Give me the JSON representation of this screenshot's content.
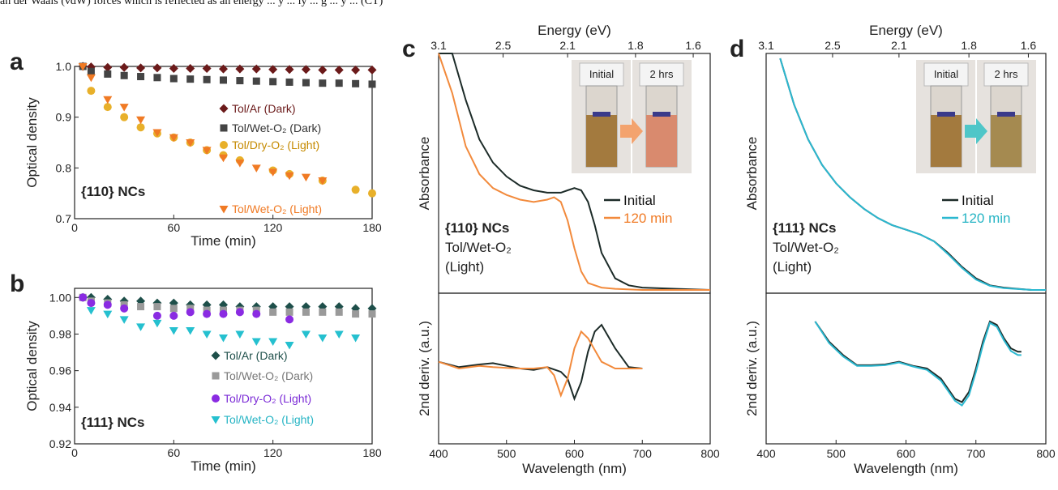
{
  "top_text": "an der Waals (vdW) forces which is reflected as an energy ... y ... ly ... g ... y ... (CT)",
  "colors": {
    "dark_red": "#6b1a1a",
    "dark_gray": "#444444",
    "gold": "#e8b02a",
    "orange": "#f07a24",
    "dark_teal": "#1e4f4a",
    "gray": "#9a9a9a",
    "purple": "#8a2be2",
    "cyan": "#25c0cf",
    "black_line": "#1c2b28",
    "orange_line": "#f28a3c",
    "cyan_line": "#2bb8d0"
  },
  "chart_data": [
    {
      "panel": "a",
      "type": "scatter",
      "xlabel": "Time (min)",
      "ylabel": "Optical density",
      "xlim": [
        0,
        180
      ],
      "ylim": [
        0.7,
        1.0
      ],
      "xticks": [
        "0",
        "60",
        "120",
        "180"
      ],
      "yticks": [
        "0.7",
        "0.8",
        "0.9",
        "1.0"
      ],
      "annotation": "{110} NCs",
      "series": [
        {
          "name": "Tol/Ar (Dark)",
          "marker": "diamond",
          "color": "#6b1a1a",
          "x": [
            5,
            10,
            20,
            30,
            40,
            50,
            60,
            70,
            80,
            90,
            100,
            110,
            120,
            130,
            140,
            150,
            160,
            170,
            180
          ],
          "y": [
            1.0,
            0.999,
            0.998,
            0.998,
            0.997,
            0.997,
            0.996,
            0.996,
            0.996,
            0.995,
            0.995,
            0.995,
            0.994,
            0.994,
            0.994,
            0.993,
            0.993,
            0.993,
            0.993
          ]
        },
        {
          "name": "Tol/Wet-O₂ (Dark)",
          "marker": "square",
          "color": "#444444",
          "x": [
            5,
            10,
            20,
            30,
            40,
            50,
            60,
            70,
            80,
            90,
            100,
            110,
            120,
            130,
            140,
            150,
            160,
            170,
            180
          ],
          "y": [
            1.0,
            0.99,
            0.985,
            0.982,
            0.98,
            0.978,
            0.976,
            0.975,
            0.974,
            0.973,
            0.972,
            0.971,
            0.97,
            0.969,
            0.968,
            0.967,
            0.967,
            0.966,
            0.965
          ]
        },
        {
          "name": "Tol/Dry-O₂ (Light)",
          "marker": "circle",
          "color": "#e8b02a",
          "x": [
            10,
            20,
            30,
            40,
            50,
            60,
            70,
            80,
            90,
            100,
            120,
            130,
            150,
            170,
            180
          ],
          "y": [
            0.952,
            0.92,
            0.9,
            0.88,
            0.868,
            0.86,
            0.85,
            0.835,
            0.825,
            0.815,
            0.795,
            0.788,
            0.775,
            0.757,
            0.75
          ]
        },
        {
          "name": "Tol/Wet-O₂ (Light)",
          "marker": "triangle-down",
          "color": "#f07a24",
          "x": [
            5,
            10,
            20,
            30,
            40,
            50,
            60,
            70,
            80,
            90,
            100,
            110,
            120,
            130,
            140,
            150
          ],
          "y": [
            1.0,
            0.978,
            0.935,
            0.92,
            0.895,
            0.87,
            0.86,
            0.85,
            0.835,
            0.82,
            0.81,
            0.8,
            0.792,
            0.785,
            0.782,
            0.775
          ]
        }
      ]
    },
    {
      "panel": "b",
      "type": "scatter",
      "xlabel": "Time (min)",
      "ylabel": "Optical density",
      "xlim": [
        0,
        180
      ],
      "ylim": [
        0.92,
        1.005
      ],
      "xticks": [
        "0",
        "60",
        "120",
        "180"
      ],
      "yticks": [
        "0.92",
        "0.94",
        "0.96",
        "0.98",
        "1.00"
      ],
      "annotation": "{111} NCs",
      "series": [
        {
          "name": "Tol/Ar (Dark)",
          "marker": "diamond",
          "color": "#1e4f4a",
          "x": [
            5,
            10,
            20,
            30,
            40,
            50,
            60,
            70,
            80,
            90,
            100,
            110,
            120,
            130,
            140,
            150,
            160,
            170,
            180
          ],
          "y": [
            1.0,
            1.0,
            0.999,
            0.998,
            0.998,
            0.997,
            0.997,
            0.996,
            0.996,
            0.996,
            0.995,
            0.995,
            0.995,
            0.995,
            0.995,
            0.995,
            0.995,
            0.994,
            0.994
          ]
        },
        {
          "name": "Tol/Wet-O₂ (Dark)",
          "marker": "square",
          "color": "#9a9a9a",
          "x": [
            5,
            10,
            20,
            30,
            40,
            50,
            60,
            70,
            80,
            90,
            100,
            110,
            120,
            130,
            140,
            150,
            160,
            170,
            180
          ],
          "y": [
            1.0,
            0.998,
            0.997,
            0.996,
            0.995,
            0.995,
            0.994,
            0.994,
            0.993,
            0.993,
            0.993,
            0.993,
            0.992,
            0.992,
            0.992,
            0.992,
            0.992,
            0.991,
            0.991
          ]
        },
        {
          "name": "Tol/Dry-O₂ (Light)",
          "marker": "circle",
          "color": "#8a2be2",
          "x": [
            5,
            10,
            20,
            30,
            50,
            60,
            70,
            80,
            90,
            100,
            110,
            130
          ],
          "y": [
            1.0,
            0.997,
            0.996,
            0.994,
            0.99,
            0.99,
            0.992,
            0.991,
            0.991,
            0.992,
            0.991,
            0.988
          ]
        },
        {
          "name": "Tol/Wet-O₂ (Light)",
          "marker": "triangle-down",
          "color": "#25c0cf",
          "x": [
            10,
            20,
            30,
            40,
            50,
            60,
            70,
            80,
            90,
            100,
            110,
            120,
            130,
            140,
            150,
            160,
            170
          ],
          "y": [
            0.993,
            0.991,
            0.988,
            0.984,
            0.986,
            0.982,
            0.982,
            0.98,
            0.978,
            0.98,
            0.976,
            0.976,
            0.974,
            0.98,
            0.978,
            0.98,
            0.978
          ]
        }
      ]
    },
    {
      "panel": "c",
      "type": "line",
      "xlabel": "Wavelength (nm)",
      "top_xlabel": "Energy (eV)",
      "xlim": [
        400,
        800
      ],
      "xticks": [
        "400",
        "500",
        "600",
        "700",
        "800"
      ],
      "top_xticks": [
        "3.1",
        "2.5",
        "2.1",
        "1.8",
        "1.6"
      ],
      "ylabel_top": "Absorbance",
      "ylabel_bottom": "2nd deriv. (a.u.)",
      "annotation": [
        "{110} NCs",
        "Tol/Wet-O₂",
        "(Light)"
      ],
      "inset_labels": [
        "Initial",
        "2 hrs"
      ],
      "series": [
        {
          "name": "Initial",
          "color": "#1c2b28",
          "x": [
            400,
            420,
            440,
            460,
            480,
            500,
            520,
            540,
            560,
            580,
            590,
            600,
            610,
            620,
            630,
            640,
            660,
            680,
            700,
            750,
            800
          ],
          "absorbance": [
            1.3,
            1.05,
            0.82,
            0.65,
            0.55,
            0.49,
            0.45,
            0.43,
            0.42,
            0.42,
            0.43,
            0.44,
            0.43,
            0.38,
            0.28,
            0.16,
            0.05,
            0.02,
            0.01,
            0.005,
            0.0
          ],
          "deriv_x": [
            400,
            430,
            460,
            480,
            500,
            520,
            540,
            560,
            580,
            590,
            600,
            610,
            620,
            630,
            640,
            660,
            680,
            700
          ],
          "deriv": [
            0.1,
            0.02,
            0.06,
            0.08,
            0.04,
            0.0,
            -0.02,
            0.02,
            -0.05,
            -0.15,
            -0.45,
            -0.2,
            0.25,
            0.55,
            0.65,
            0.3,
            0.02,
            0.0
          ]
        },
        {
          "name": "120 min",
          "color": "#f28a3c",
          "x": [
            400,
            420,
            440,
            460,
            480,
            500,
            520,
            540,
            560,
            570,
            580,
            590,
            600,
            610,
            620,
            640,
            660,
            700,
            750,
            800
          ],
          "absorbance": [
            1.3,
            0.85,
            0.62,
            0.5,
            0.44,
            0.41,
            0.39,
            0.38,
            0.39,
            0.4,
            0.38,
            0.3,
            0.18,
            0.08,
            0.03,
            0.01,
            0.005,
            0.0,
            0.0,
            0.0
          ],
          "deriv_x": [
            400,
            430,
            460,
            480,
            500,
            520,
            540,
            560,
            570,
            580,
            590,
            600,
            610,
            620,
            640,
            660,
            700
          ],
          "deriv": [
            0.1,
            0.0,
            0.04,
            0.02,
            0.01,
            0.0,
            0.0,
            0.02,
            -0.1,
            -0.4,
            -0.15,
            0.3,
            0.55,
            0.45,
            0.1,
            0.0,
            0.0
          ]
        }
      ],
      "legend": [
        "Initial",
        "120 min"
      ]
    },
    {
      "panel": "d",
      "type": "line",
      "xlabel": "Wavelength (nm)",
      "top_xlabel": "Energy (eV)",
      "xlim": [
        400,
        800
      ],
      "xticks": [
        "400",
        "500",
        "600",
        "700",
        "800"
      ],
      "top_xticks": [
        "3.1",
        "2.5",
        "2.1",
        "1.8",
        "1.6"
      ],
      "ylabel_top": "Absorbance",
      "ylabel_bottom": "2nd deriv. (a.u.)",
      "annotation": [
        "{111} NCs",
        "Tol/Wet-O₂",
        "(Light)"
      ],
      "inset_labels": [
        "Initial",
        "2 hrs"
      ],
      "series": [
        {
          "name": "Initial",
          "color": "#1c2b28",
          "x": [
            420,
            440,
            460,
            480,
            500,
            520,
            540,
            560,
            580,
            600,
            620,
            640,
            660,
            680,
            700,
            720,
            740,
            760,
            780,
            800
          ],
          "absorbance": [
            1.0,
            0.8,
            0.65,
            0.54,
            0.46,
            0.4,
            0.35,
            0.31,
            0.28,
            0.26,
            0.24,
            0.21,
            0.16,
            0.1,
            0.05,
            0.02,
            0.01,
            0.005,
            0.0,
            0.0
          ],
          "deriv_x": [
            470,
            490,
            510,
            530,
            550,
            570,
            590,
            610,
            630,
            650,
            670,
            680,
            690,
            700,
            710,
            720,
            730,
            740,
            750,
            760,
            765
          ],
          "deriv": [
            0.7,
            0.4,
            0.2,
            0.05,
            0.05,
            0.06,
            0.1,
            0.04,
            0.0,
            -0.15,
            -0.45,
            -0.5,
            -0.35,
            0.0,
            0.4,
            0.7,
            0.65,
            0.45,
            0.3,
            0.25,
            0.25
          ]
        },
        {
          "name": "120 min",
          "color": "#2bb8d0",
          "x": [
            420,
            440,
            460,
            480,
            500,
            520,
            540,
            560,
            580,
            600,
            620,
            640,
            660,
            680,
            700,
            720,
            740,
            760,
            780,
            800
          ],
          "absorbance": [
            1.0,
            0.8,
            0.65,
            0.54,
            0.46,
            0.4,
            0.35,
            0.31,
            0.28,
            0.26,
            0.24,
            0.21,
            0.155,
            0.095,
            0.045,
            0.018,
            0.008,
            0.004,
            0.0,
            0.0
          ],
          "deriv_x": [
            470,
            490,
            510,
            530,
            550,
            570,
            590,
            610,
            630,
            650,
            670,
            680,
            690,
            700,
            710,
            720,
            730,
            740,
            750,
            760,
            765
          ],
          "deriv": [
            0.7,
            0.38,
            0.18,
            0.04,
            0.04,
            0.05,
            0.09,
            0.03,
            -0.02,
            -0.18,
            -0.48,
            -0.55,
            -0.4,
            -0.05,
            0.35,
            0.68,
            0.62,
            0.42,
            0.26,
            0.2,
            0.2
          ]
        }
      ],
      "legend": [
        "Initial",
        "120 min"
      ]
    }
  ]
}
